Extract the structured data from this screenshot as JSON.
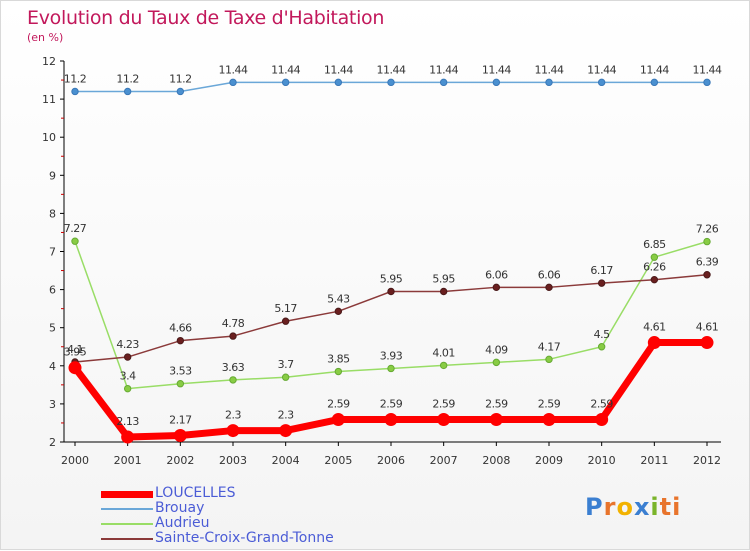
{
  "header": {
    "title": "Evolution du Taux de Taxe d'Habitation",
    "subtitle": "(en %)"
  },
  "logo": {
    "text": "Proxiti",
    "colors": [
      "#3b7fd1",
      "#e8742c",
      "#f2b200",
      "#3b7fd1",
      "#7ab42a",
      "#e8742c",
      "#e8742c"
    ]
  },
  "chart_data": {
    "type": "line",
    "title": "Evolution du Taux de Taxe d'Habitation",
    "subtitle": "(en %)",
    "xlabel": "",
    "ylabel": "",
    "ylim": [
      2,
      12
    ],
    "yticks": [
      "2",
      "3",
      "4",
      "5",
      "6",
      "7",
      "8",
      "9",
      "10",
      "11",
      "12"
    ],
    "grid": false,
    "legend_position": "bottom-left",
    "x": [
      "2000",
      "2001",
      "2002",
      "2003",
      "2004",
      "2005",
      "2006",
      "2007",
      "2008",
      "2009",
      "2010",
      "2011",
      "2012"
    ],
    "series": [
      {
        "name": "LOUCELLES",
        "color": "#ff0000",
        "values": [
          3.95,
          2.13,
          2.17,
          2.3,
          2.3,
          2.59,
          2.59,
          2.59,
          2.59,
          2.59,
          2.59,
          4.61,
          4.61
        ],
        "labels": [
          "3.95",
          "2.13",
          "2.17",
          "2.3",
          "2.3",
          "2.59",
          "2.59",
          "2.59",
          "2.59",
          "2.59",
          "2.59",
          "4.61",
          "4.61"
        ]
      },
      {
        "name": "Brouay",
        "color": "#6aa7d8",
        "values": [
          11.2,
          11.2,
          11.2,
          11.44,
          11.44,
          11.44,
          11.44,
          11.44,
          11.44,
          11.44,
          11.44,
          11.44,
          11.44
        ],
        "labels": [
          "11.2",
          "11.2",
          "11.2",
          "11.44",
          "11.44",
          "11.44",
          "11.44",
          "11.44",
          "11.44",
          "11.44",
          "11.44",
          "11.44",
          "11.44"
        ]
      },
      {
        "name": "Audrieu",
        "color": "#99dd66",
        "values": [
          7.27,
          3.4,
          3.53,
          3.63,
          3.7,
          3.85,
          3.93,
          4.01,
          4.09,
          4.17,
          4.5,
          6.85,
          7.26
        ],
        "labels": [
          "7.27",
          "3.4",
          "3.53",
          "3.63",
          "3.7",
          "3.85",
          "3.93",
          "4.01",
          "4.09",
          "4.17",
          "4.5",
          "6.85",
          "7.26"
        ]
      },
      {
        "name": "Sainte-Croix-Grand-Tonne",
        "color": "#8b3a3a",
        "values": [
          4.1,
          4.23,
          4.66,
          4.78,
          5.17,
          5.43,
          5.95,
          5.95,
          6.06,
          6.06,
          6.17,
          6.26,
          6.39
        ],
        "labels": [
          "4.1",
          "4.23",
          "4.66",
          "4.78",
          "5.17",
          "5.43",
          "5.95",
          "5.95",
          "6.06",
          "6.06",
          "6.17",
          "6.26",
          "6.39"
        ]
      }
    ]
  }
}
